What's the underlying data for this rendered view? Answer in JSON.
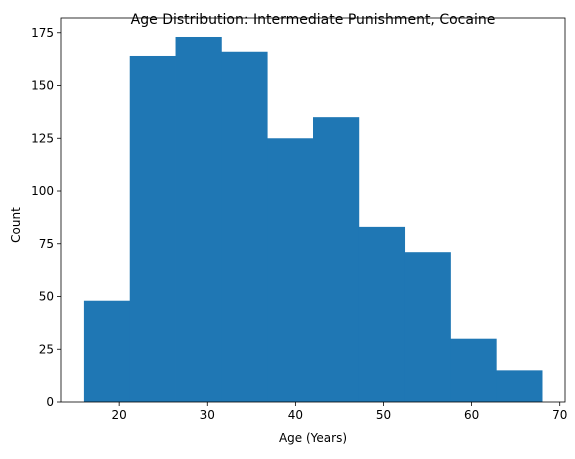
{
  "chart_data": {
    "type": "histogram",
    "title": "Age Distribution: Intermediate Punishment, Cocaine",
    "xlabel": "Age (Years)",
    "ylabel": "Count",
    "bin_edges": [
      16.0,
      21.2,
      26.4,
      31.6,
      36.8,
      42.0,
      47.2,
      52.4,
      57.6,
      62.8,
      68.0
    ],
    "values": [
      48,
      164,
      173,
      166,
      125,
      135,
      83,
      71,
      30,
      15
    ],
    "xlim": [
      13.4,
      70.6
    ],
    "ylim": [
      0,
      182
    ],
    "x_ticks": [
      20,
      30,
      40,
      50,
      60,
      70
    ],
    "y_ticks": [
      0,
      25,
      50,
      75,
      100,
      125,
      150,
      175
    ],
    "grid": false,
    "bar_color": "#1f77b4"
  }
}
